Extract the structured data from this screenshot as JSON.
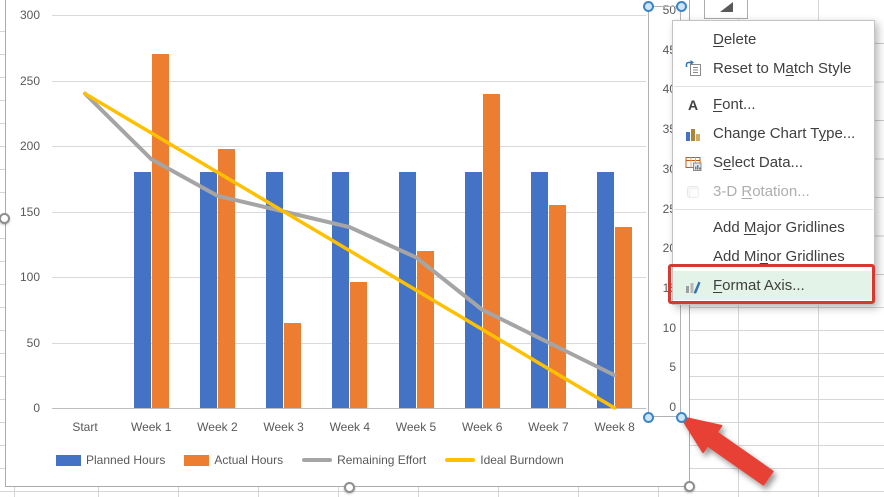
{
  "chart_data": {
    "type": "bar",
    "subtype": "combo-bar-line",
    "categories": [
      "Start",
      "Week 1",
      "Week 2",
      "Week 3",
      "Week 4",
      "Week 5",
      "Week 6",
      "Week 7",
      "Week 8"
    ],
    "series": [
      {
        "name": "Planned Hours",
        "kind": "bar",
        "color": "#4472C4",
        "values": [
          null,
          180,
          180,
          180,
          180,
          180,
          180,
          180,
          180
        ]
      },
      {
        "name": "Actual Hours",
        "kind": "bar",
        "color": "#ED7D31",
        "values": [
          null,
          270,
          198,
          65,
          96,
          120,
          240,
          155,
          138
        ]
      },
      {
        "name": "Remaining Effort",
        "kind": "line",
        "color": "#A5A5A5",
        "values": [
          240,
          190,
          162,
          150,
          138,
          115,
          75,
          50,
          25
        ]
      },
      {
        "name": "Ideal Burndown",
        "kind": "line",
        "color": "#FFC000",
        "values": [
          240,
          210,
          180,
          150,
          120,
          90,
          60,
          30,
          0
        ]
      }
    ],
    "title": "",
    "xlabel": "",
    "ylabel": "",
    "grid": true,
    "legend_position": "bottom",
    "primary_axis": {
      "ticks": [
        0,
        50,
        100,
        150,
        200,
        250,
        300
      ],
      "ylim": [
        0,
        300
      ]
    },
    "secondary_axis": {
      "ticks": [
        0,
        5,
        10,
        15,
        20,
        25,
        30,
        35,
        40,
        45,
        50
      ],
      "ylim": [
        0,
        50
      ]
    }
  },
  "context_menu": {
    "items": [
      {
        "label": "Delete",
        "key": "D"
      },
      {
        "label": "Reset to Match Style",
        "key": "a",
        "icon": "reset-style-icon"
      },
      {
        "separator": true
      },
      {
        "label": "Font...",
        "key": "F",
        "icon": "font-icon"
      },
      {
        "label": "Change Chart Type...",
        "key": "y",
        "icon": "change-chart-type-icon"
      },
      {
        "label": "Select Data...",
        "key": "e",
        "icon": "select-data-icon"
      },
      {
        "label": "3-D Rotation...",
        "key": "R",
        "icon": "rotation-3d-icon",
        "disabled": true
      },
      {
        "separator": true
      },
      {
        "label": "Add Major Gridlines",
        "key": "M"
      },
      {
        "label": "Add Minor Gridlines",
        "key": "n"
      },
      {
        "label": "Format Axis...",
        "key": "F",
        "icon": "format-axis-icon",
        "highlighted": true
      }
    ]
  },
  "annotations": {
    "highlight_box_color": "#D6392E",
    "arrow_color": "#E74034"
  },
  "selection": {
    "selected_element": "secondary-value-axis"
  }
}
